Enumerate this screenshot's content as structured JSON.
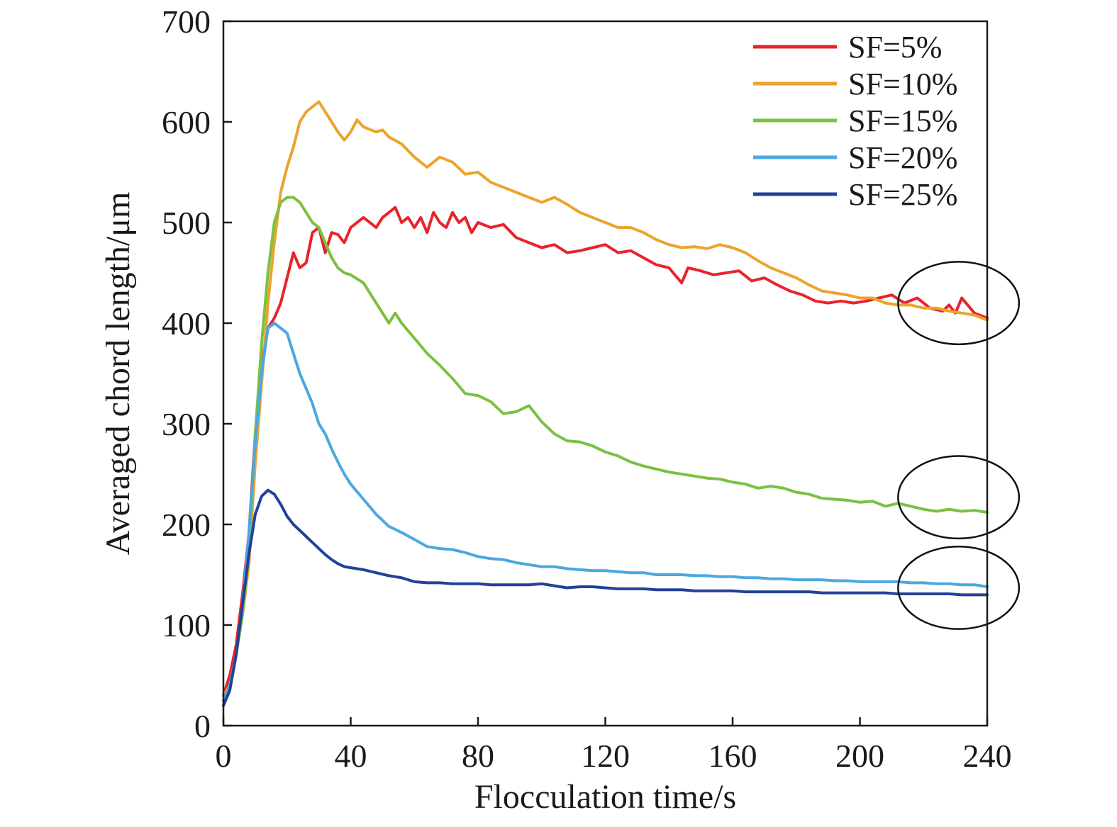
{
  "chart_data": {
    "type": "line",
    "title": "",
    "xlabel": "Flocculation time/s",
    "ylabel": "Averaged chord length/μm",
    "xlim": [
      0,
      240
    ],
    "ylim": [
      0,
      700
    ],
    "xticks": [
      0,
      40,
      80,
      120,
      160,
      200,
      240
    ],
    "yticks": [
      0,
      100,
      200,
      300,
      400,
      500,
      600,
      700
    ],
    "grid": false,
    "legend_position": "top-right",
    "series": [
      {
        "name": "SF=5%",
        "color": "#e8232b",
        "x": [
          0,
          2,
          4,
          6,
          8,
          10,
          12,
          14,
          16,
          18,
          20,
          22,
          24,
          26,
          28,
          30,
          32,
          34,
          36,
          38,
          40,
          44,
          48,
          50,
          52,
          54,
          56,
          58,
          60,
          62,
          64,
          66,
          68,
          70,
          72,
          74,
          76,
          78,
          80,
          84,
          88,
          92,
          96,
          100,
          104,
          108,
          112,
          116,
          120,
          124,
          128,
          132,
          136,
          140,
          144,
          146,
          150,
          154,
          158,
          162,
          166,
          170,
          174,
          178,
          182,
          186,
          190,
          194,
          198,
          202,
          206,
          210,
          214,
          218,
          222,
          226,
          228,
          230,
          232,
          236,
          240
        ],
        "y": [
          30,
          50,
          80,
          130,
          190,
          290,
          360,
          395,
          405,
          420,
          445,
          470,
          455,
          460,
          490,
          495,
          470,
          490,
          488,
          480,
          495,
          505,
          495,
          505,
          510,
          515,
          500,
          505,
          495,
          505,
          490,
          510,
          500,
          495,
          510,
          500,
          505,
          490,
          500,
          495,
          498,
          485,
          480,
          475,
          478,
          470,
          472,
          475,
          478,
          470,
          472,
          465,
          458,
          455,
          440,
          455,
          452,
          448,
          450,
          452,
          442,
          445,
          438,
          432,
          428,
          422,
          420,
          422,
          420,
          422,
          425,
          428,
          420,
          425,
          415,
          412,
          418,
          410,
          425,
          410,
          405
        ]
      },
      {
        "name": "SF=10%",
        "color": "#eba42b",
        "x": [
          0,
          2,
          4,
          6,
          8,
          10,
          12,
          14,
          16,
          18,
          20,
          22,
          24,
          26,
          28,
          30,
          32,
          34,
          36,
          38,
          40,
          42,
          44,
          48,
          50,
          52,
          56,
          60,
          64,
          68,
          72,
          76,
          80,
          84,
          88,
          92,
          96,
          100,
          104,
          108,
          112,
          116,
          120,
          124,
          128,
          132,
          136,
          140,
          144,
          148,
          152,
          156,
          160,
          164,
          168,
          172,
          176,
          180,
          184,
          188,
          192,
          196,
          200,
          204,
          208,
          212,
          216,
          220,
          224,
          228,
          232,
          236,
          240
        ],
        "y": [
          30,
          40,
          70,
          110,
          160,
          260,
          340,
          420,
          480,
          530,
          555,
          575,
          600,
          610,
          615,
          620,
          610,
          600,
          590,
          582,
          590,
          602,
          595,
          590,
          592,
          585,
          578,
          565,
          555,
          565,
          560,
          548,
          550,
          540,
          535,
          530,
          525,
          520,
          525,
          518,
          510,
          505,
          500,
          495,
          495,
          490,
          483,
          478,
          475,
          476,
          474,
          478,
          475,
          470,
          462,
          455,
          450,
          445,
          438,
          432,
          430,
          428,
          425,
          425,
          420,
          418,
          418,
          415,
          415,
          412,
          410,
          408,
          403
        ]
      },
      {
        "name": "SF=15%",
        "color": "#7ac143",
        "x": [
          0,
          2,
          4,
          6,
          8,
          10,
          12,
          14,
          16,
          18,
          20,
          22,
          24,
          26,
          28,
          30,
          32,
          34,
          36,
          38,
          40,
          44,
          48,
          52,
          54,
          56,
          60,
          64,
          68,
          72,
          76,
          80,
          84,
          88,
          92,
          96,
          100,
          104,
          108,
          112,
          116,
          120,
          124,
          128,
          132,
          136,
          140,
          144,
          148,
          152,
          156,
          160,
          164,
          168,
          172,
          176,
          180,
          184,
          188,
          192,
          196,
          200,
          204,
          208,
          212,
          216,
          220,
          224,
          228,
          232,
          236,
          240
        ],
        "y": [
          25,
          40,
          70,
          110,
          170,
          290,
          380,
          450,
          500,
          520,
          525,
          525,
          520,
          510,
          500,
          495,
          480,
          465,
          455,
          450,
          448,
          440,
          420,
          400,
          410,
          400,
          385,
          370,
          358,
          345,
          330,
          328,
          322,
          310,
          312,
          318,
          302,
          290,
          283,
          282,
          278,
          272,
          268,
          262,
          258,
          255,
          252,
          250,
          248,
          246,
          245,
          242,
          240,
          236,
          238,
          236,
          232,
          230,
          226,
          225,
          224,
          222,
          223,
          218,
          221,
          218,
          215,
          213,
          215,
          213,
          214,
          212
        ]
      },
      {
        "name": "SF=20%",
        "color": "#4ba8e0",
        "x": [
          0,
          2,
          4,
          6,
          8,
          10,
          12,
          14,
          16,
          18,
          20,
          22,
          24,
          26,
          28,
          30,
          32,
          34,
          36,
          38,
          40,
          44,
          48,
          52,
          56,
          60,
          64,
          68,
          72,
          76,
          80,
          84,
          88,
          92,
          96,
          100,
          104,
          108,
          112,
          116,
          120,
          124,
          128,
          132,
          136,
          140,
          144,
          148,
          152,
          156,
          160,
          164,
          168,
          172,
          176,
          180,
          184,
          188,
          192,
          196,
          200,
          204,
          208,
          212,
          216,
          220,
          224,
          228,
          232,
          236,
          240
        ],
        "y": [
          25,
          40,
          70,
          120,
          190,
          280,
          350,
          395,
          400,
          395,
          390,
          370,
          350,
          335,
          320,
          300,
          290,
          275,
          262,
          250,
          240,
          225,
          210,
          198,
          192,
          185,
          178,
          176,
          175,
          172,
          168,
          166,
          165,
          162,
          160,
          158,
          158,
          156,
          155,
          154,
          154,
          153,
          152,
          152,
          150,
          150,
          150,
          149,
          149,
          148,
          148,
          147,
          147,
          146,
          146,
          145,
          145,
          145,
          144,
          144,
          143,
          143,
          143,
          143,
          142,
          142,
          141,
          141,
          140,
          140,
          138
        ]
      },
      {
        "name": "SF=25%",
        "color": "#23409a",
        "x": [
          0,
          2,
          4,
          6,
          8,
          10,
          12,
          14,
          16,
          18,
          20,
          22,
          24,
          26,
          28,
          30,
          32,
          34,
          36,
          38,
          40,
          44,
          48,
          52,
          56,
          60,
          64,
          68,
          72,
          76,
          80,
          84,
          88,
          92,
          96,
          100,
          104,
          108,
          112,
          116,
          120,
          124,
          128,
          132,
          136,
          140,
          144,
          148,
          152,
          156,
          160,
          164,
          168,
          172,
          176,
          180,
          184,
          188,
          192,
          196,
          200,
          204,
          208,
          212,
          216,
          220,
          224,
          228,
          232,
          236,
          240
        ],
        "y": [
          20,
          35,
          70,
          120,
          170,
          210,
          228,
          234,
          230,
          220,
          208,
          200,
          194,
          188,
          182,
          176,
          170,
          165,
          161,
          158,
          157,
          155,
          152,
          149,
          147,
          143,
          142,
          142,
          141,
          141,
          141,
          140,
          140,
          140,
          140,
          141,
          139,
          137,
          138,
          138,
          137,
          136,
          136,
          136,
          135,
          135,
          135,
          134,
          134,
          134,
          134,
          133,
          133,
          133,
          133,
          133,
          133,
          132,
          132,
          132,
          132,
          132,
          132,
          131,
          131,
          131,
          131,
          131,
          130,
          130,
          130
        ]
      }
    ],
    "annotations": [
      {
        "shape": "ellipse",
        "cx": 231,
        "cy": 420,
        "rx": 19,
        "ry": 41
      },
      {
        "shape": "ellipse",
        "cx": 231,
        "cy": 227,
        "rx": 19,
        "ry": 41
      },
      {
        "shape": "ellipse",
        "cx": 231,
        "cy": 137,
        "rx": 19,
        "ry": 41
      }
    ]
  }
}
